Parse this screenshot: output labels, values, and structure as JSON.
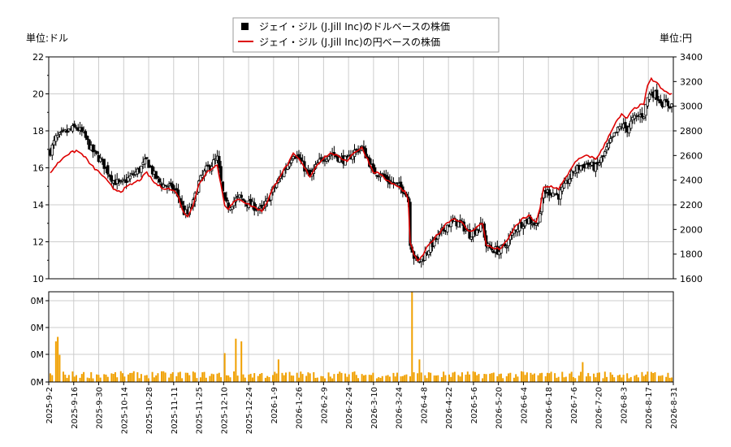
{
  "chart_data": {
    "type": "line",
    "legend": {
      "placement": "top-center",
      "entries": [
        {
          "label": "ジェイ・ジル (J.Jill Inc)のドルベースの株価",
          "color": "#000000",
          "marker": "square"
        },
        {
          "label": "ジェイ・ジル (J.Jill Inc)の円ベースの株価",
          "color": "#dd0000",
          "marker": "line"
        }
      ]
    },
    "left_axis": {
      "unit_label": "単位:ドル",
      "ylim": [
        10,
        22
      ],
      "ticks": [
        "10",
        "12",
        "14",
        "16",
        "18",
        "20",
        "22"
      ]
    },
    "right_axis": {
      "unit_label": "単位:円",
      "ylim": [
        1600,
        3400
      ],
      "ticks": [
        "1600",
        "1800",
        "2000",
        "2200",
        "2400",
        "2600",
        "2800",
        "3000",
        "3200",
        "3400"
      ]
    },
    "volume_axis": {
      "ticks": [
        "0M",
        "0M",
        "0M",
        "0M"
      ]
    },
    "x_tick_labels": [
      "2025-9-2",
      "2025-9-16",
      "2025-9-30",
      "2025-10-14",
      "2025-10-28",
      "2025-11-11",
      "2025-11-25",
      "2025-12-10",
      "2025-12-24",
      "2026-1-9",
      "2026-1-26",
      "2026-2-9",
      "2026-2-24",
      "2026-3-10",
      "2026-3-24",
      "2026-4-8",
      "2026-4-22",
      "2026-5-6",
      "2026-5-20",
      "2026-6-4",
      "2026-6-18",
      "2026-7-6",
      "2026-7-20",
      "2026-8-3",
      "2026-8-17",
      "2026-8-31"
    ],
    "grid": true,
    "colors": {
      "candle": "#000000",
      "yen_line": "#dd0000",
      "volume": "#f0a000",
      "grid": "#cccccc"
    },
    "usd_close_anchors": [
      [
        0,
        16.9
      ],
      [
        3,
        17.6
      ],
      [
        8,
        17.9
      ],
      [
        14,
        18.2
      ],
      [
        18,
        17.8
      ],
      [
        22,
        17.0
      ],
      [
        28,
        16.3
      ],
      [
        34,
        15.3
      ],
      [
        38,
        15.1
      ],
      [
        43,
        15.5
      ],
      [
        48,
        15.9
      ],
      [
        52,
        16.4
      ],
      [
        56,
        15.6
      ],
      [
        60,
        15.1
      ],
      [
        64,
        15.0
      ],
      [
        68,
        14.7
      ],
      [
        70,
        14.2
      ],
      [
        72,
        13.6
      ],
      [
        74,
        13.5
      ],
      [
        77,
        14.1
      ],
      [
        80,
        15.2
      ],
      [
        84,
        15.9
      ],
      [
        88,
        16.3
      ],
      [
        90,
        16.5
      ],
      [
        92,
        15.2
      ],
      [
        94,
        14.1
      ],
      [
        96,
        13.9
      ],
      [
        99,
        14.2
      ],
      [
        102,
        14.4
      ],
      [
        106,
        14.1
      ],
      [
        110,
        13.9
      ],
      [
        114,
        13.7
      ],
      [
        117,
        14.2
      ],
      [
        120,
        14.8
      ],
      [
        124,
        15.5
      ],
      [
        128,
        16.2
      ],
      [
        131,
        16.8
      ],
      [
        134,
        16.5
      ],
      [
        137,
        16.0
      ],
      [
        140,
        15.5
      ],
      [
        144,
        16.2
      ],
      [
        148,
        16.6
      ],
      [
        152,
        16.8
      ],
      [
        156,
        16.5
      ],
      [
        160,
        16.4
      ],
      [
        164,
        16.9
      ],
      [
        168,
        17.1
      ],
      [
        171,
        16.5
      ],
      [
        174,
        15.8
      ],
      [
        178,
        15.7
      ],
      [
        182,
        15.3
      ],
      [
        186,
        15.1
      ],
      [
        189,
        14.9
      ],
      [
        191,
        14.8
      ],
      [
        193,
        14.2
      ],
      [
        194,
        12.0
      ],
      [
        196,
        11.2
      ],
      [
        198,
        10.9
      ],
      [
        200,
        11.0
      ],
      [
        203,
        11.5
      ],
      [
        206,
        11.9
      ],
      [
        210,
        12.4
      ],
      [
        214,
        12.9
      ],
      [
        218,
        13.1
      ],
      [
        222,
        12.9
      ],
      [
        226,
        12.4
      ],
      [
        230,
        12.7
      ],
      [
        233,
        12.9
      ],
      [
        235,
        11.8
      ],
      [
        238,
        11.6
      ],
      [
        242,
        11.5
      ],
      [
        246,
        11.9
      ],
      [
        250,
        12.6
      ],
      [
        254,
        13.0
      ],
      [
        258,
        13.2
      ],
      [
        262,
        12.9
      ],
      [
        264,
        13.6
      ],
      [
        266,
        14.7
      ],
      [
        270,
        14.7
      ],
      [
        274,
        14.5
      ],
      [
        278,
        15.1
      ],
      [
        282,
        15.8
      ],
      [
        286,
        16.1
      ],
      [
        290,
        16.2
      ],
      [
        294,
        16.0
      ],
      [
        298,
        16.6
      ],
      [
        302,
        17.4
      ],
      [
        305,
        17.9
      ],
      [
        308,
        18.3
      ],
      [
        311,
        18.1
      ],
      [
        314,
        18.6
      ],
      [
        317,
        18.8
      ],
      [
        320,
        18.9
      ],
      [
        322,
        19.8
      ],
      [
        324,
        20.1
      ],
      [
        327,
        19.9
      ],
      [
        330,
        19.5
      ],
      [
        334,
        19.4
      ]
    ],
    "jpy_close_anchors": [
      [
        0,
        2460
      ],
      [
        3,
        2520
      ],
      [
        8,
        2600
      ],
      [
        14,
        2640
      ],
      [
        18,
        2600
      ],
      [
        22,
        2520
      ],
      [
        28,
        2440
      ],
      [
        34,
        2330
      ],
      [
        38,
        2310
      ],
      [
        43,
        2360
      ],
      [
        48,
        2400
      ],
      [
        52,
        2460
      ],
      [
        56,
        2380
      ],
      [
        60,
        2340
      ],
      [
        64,
        2330
      ],
      [
        68,
        2300
      ],
      [
        70,
        2220
      ],
      [
        72,
        2130
      ],
      [
        74,
        2110
      ],
      [
        77,
        2200
      ],
      [
        80,
        2360
      ],
      [
        84,
        2460
      ],
      [
        88,
        2510
      ],
      [
        90,
        2520
      ],
      [
        92,
        2360
      ],
      [
        94,
        2200
      ],
      [
        96,
        2170
      ],
      [
        99,
        2220
      ],
      [
        102,
        2250
      ],
      [
        106,
        2210
      ],
      [
        110,
        2180
      ],
      [
        114,
        2150
      ],
      [
        117,
        2230
      ],
      [
        120,
        2330
      ],
      [
        124,
        2440
      ],
      [
        128,
        2530
      ],
      [
        131,
        2610
      ],
      [
        134,
        2570
      ],
      [
        137,
        2500
      ],
      [
        140,
        2430
      ],
      [
        144,
        2530
      ],
      [
        148,
        2590
      ],
      [
        152,
        2620
      ],
      [
        156,
        2580
      ],
      [
        160,
        2560
      ],
      [
        164,
        2630
      ],
      [
        168,
        2660
      ],
      [
        171,
        2570
      ],
      [
        174,
        2470
      ],
      [
        178,
        2450
      ],
      [
        182,
        2390
      ],
      [
        186,
        2360
      ],
      [
        189,
        2330
      ],
      [
        191,
        2310
      ],
      [
        193,
        2230
      ],
      [
        194,
        1900
      ],
      [
        196,
        1790
      ],
      [
        198,
        1750
      ],
      [
        200,
        1770
      ],
      [
        203,
        1850
      ],
      [
        206,
        1910
      ],
      [
        210,
        1980
      ],
      [
        214,
        2060
      ],
      [
        218,
        2090
      ],
      [
        222,
        2050
      ],
      [
        226,
        1980
      ],
      [
        230,
        2020
      ],
      [
        233,
        2050
      ],
      [
        235,
        1880
      ],
      [
        238,
        1850
      ],
      [
        242,
        1840
      ],
      [
        246,
        1900
      ],
      [
        250,
        2010
      ],
      [
        254,
        2080
      ],
      [
        258,
        2110
      ],
      [
        262,
        2060
      ],
      [
        264,
        2170
      ],
      [
        266,
        2340
      ],
      [
        270,
        2350
      ],
      [
        274,
        2330
      ],
      [
        278,
        2420
      ],
      [
        282,
        2530
      ],
      [
        286,
        2580
      ],
      [
        290,
        2600
      ],
      [
        294,
        2570
      ],
      [
        298,
        2660
      ],
      [
        302,
        2790
      ],
      [
        305,
        2870
      ],
      [
        308,
        2930
      ],
      [
        311,
        2900
      ],
      [
        314,
        2970
      ],
      [
        317,
        3000
      ],
      [
        320,
        3020
      ],
      [
        322,
        3160
      ],
      [
        324,
        3220
      ],
      [
        327,
        3190
      ],
      [
        330,
        3130
      ],
      [
        334,
        3100
      ]
    ],
    "volume_spikes": [
      [
        3,
        0.45
      ],
      [
        4,
        0.5
      ],
      [
        5,
        0.3
      ],
      [
        80,
        0.32
      ],
      [
        93,
        0.35
      ],
      [
        94,
        0.32
      ],
      [
        100,
        0.48
      ],
      [
        103,
        0.45
      ],
      [
        123,
        0.25
      ],
      [
        195,
        1.0
      ],
      [
        197,
        0.48
      ],
      [
        199,
        0.25
      ],
      [
        287,
        0.22
      ],
      [
        336,
        0.2
      ]
    ],
    "volume_scale_max": 1.0
  }
}
